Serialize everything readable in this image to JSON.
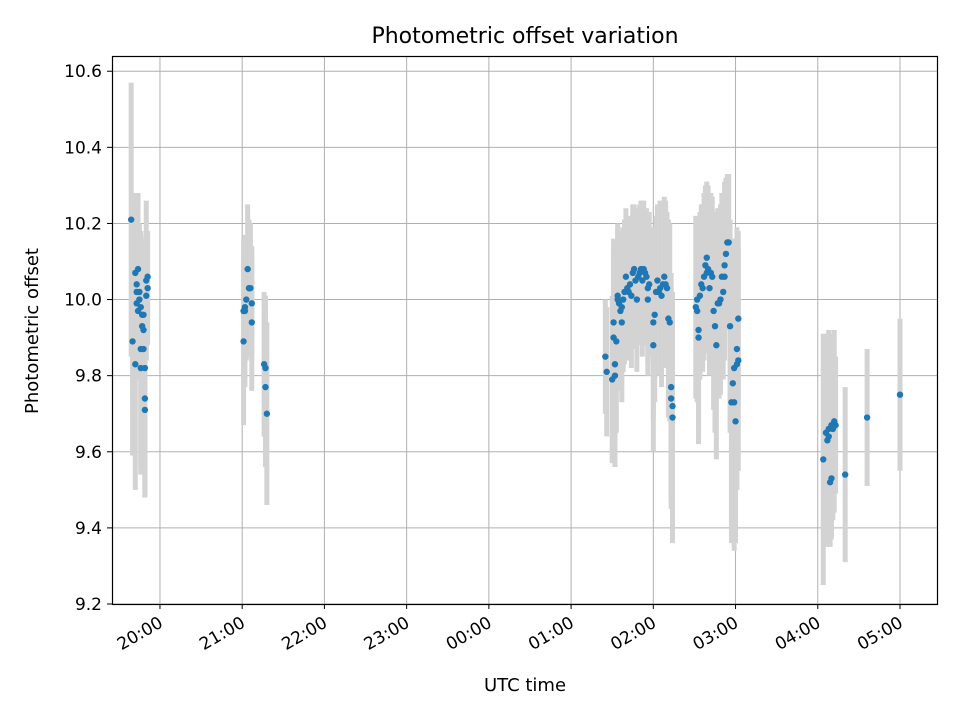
{
  "chart_data": {
    "type": "scatter",
    "title": "Photometric offset variation",
    "xlabel": "UTC time",
    "ylabel": "Photometric offset",
    "xlim": [
      "19:25",
      "05:27"
    ],
    "ylim": [
      9.2,
      10.64
    ],
    "grid": true,
    "legend": "none",
    "x_ticks": [
      "20:00",
      "21:00",
      "22:00",
      "23:00",
      "00:00",
      "01:00",
      "02:00",
      "03:00",
      "04:00",
      "05:00"
    ],
    "y_ticks": [
      "9.2",
      "9.4",
      "9.6",
      "9.8",
      "10.0",
      "10.2",
      "10.4",
      "10.6"
    ],
    "colors": {
      "points": "#1f77b4",
      "error_bars": "#d3d3d3",
      "grid": "#b0b0b0"
    },
    "series": [
      {
        "points": [
          {
            "x": "19:39",
            "y": 10.21,
            "err": 0.36
          },
          {
            "x": "19:40",
            "y": 9.89,
            "err": 0.3
          },
          {
            "x": "19:42",
            "y": 9.83,
            "err": 0.33
          },
          {
            "x": "19:42",
            "y": 10.07,
            "err": 0.21
          },
          {
            "x": "19:43",
            "y": 10.04,
            "err": 0.24
          },
          {
            "x": "19:43",
            "y": 10.02,
            "err": 0.22
          },
          {
            "x": "19:43",
            "y": 9.99,
            "err": 0.2
          },
          {
            "x": "19:44",
            "y": 10.08,
            "err": 0.2
          },
          {
            "x": "19:44",
            "y": 9.97,
            "err": 0.18
          },
          {
            "x": "19:45",
            "y": 10.0,
            "err": 0.18
          },
          {
            "x": "19:45",
            "y": 10.02,
            "err": 0.18
          },
          {
            "x": "19:46",
            "y": 9.87,
            "err": 0.31
          },
          {
            "x": "19:46",
            "y": 9.98,
            "err": 0.19
          },
          {
            "x": "19:46",
            "y": 9.82,
            "err": 0.28
          },
          {
            "x": "19:47",
            "y": 9.96,
            "err": 0.2
          },
          {
            "x": "19:47",
            "y": 9.93,
            "err": 0.22
          },
          {
            "x": "19:48",
            "y": 9.96,
            "err": 0.2
          },
          {
            "x": "19:48",
            "y": 9.92,
            "err": 0.21
          },
          {
            "x": "19:48",
            "y": 9.87,
            "err": 0.24
          },
          {
            "x": "19:49",
            "y": 9.74,
            "err": 0.26
          },
          {
            "x": "19:49",
            "y": 9.71,
            "err": 0.23
          },
          {
            "x": "19:49",
            "y": 9.82,
            "err": 0.24
          },
          {
            "x": "19:50",
            "y": 10.01,
            "err": 0.16
          },
          {
            "x": "19:50",
            "y": 10.05,
            "err": 0.21
          },
          {
            "x": "19:51",
            "y": 10.06,
            "err": 0.12
          },
          {
            "x": "19:51",
            "y": 10.03,
            "err": 0.15
          },
          {
            "x": "21:01",
            "y": 9.97,
            "err": 0.19
          },
          {
            "x": "21:01",
            "y": 9.89,
            "err": 0.22
          },
          {
            "x": "21:02",
            "y": 9.97,
            "err": 0.2
          },
          {
            "x": "21:02",
            "y": 9.98,
            "err": 0.17
          },
          {
            "x": "21:03",
            "y": 10.0,
            "err": 0.16
          },
          {
            "x": "21:04",
            "y": 10.08,
            "err": 0.17
          },
          {
            "x": "21:05",
            "y": 10.03,
            "err": 0.18
          },
          {
            "x": "21:05",
            "y": 10.03,
            "err": 0.17
          },
          {
            "x": "21:06",
            "y": 10.03,
            "err": 0.17
          },
          {
            "x": "21:07",
            "y": 9.94,
            "err": 0.18
          },
          {
            "x": "21:07",
            "y": 9.99,
            "err": 0.15
          },
          {
            "x": "21:16",
            "y": 9.83,
            "err": 0.19
          },
          {
            "x": "21:17",
            "y": 9.82,
            "err": 0.19
          },
          {
            "x": "21:17",
            "y": 9.77,
            "err": 0.21
          },
          {
            "x": "21:18",
            "y": 9.7,
            "err": 0.24
          },
          {
            "x": "01:25",
            "y": 9.85,
            "err": 0.15
          },
          {
            "x": "01:26",
            "y": 9.81,
            "err": 0.17
          },
          {
            "x": "01:30",
            "y": 9.79,
            "err": 0.22
          },
          {
            "x": "01:31",
            "y": 9.9,
            "err": 0.22
          },
          {
            "x": "01:31",
            "y": 9.94,
            "err": 0.22
          },
          {
            "x": "01:32",
            "y": 9.83,
            "err": 0.27
          },
          {
            "x": "01:32",
            "y": 9.8,
            "err": 0.24
          },
          {
            "x": "01:33",
            "y": 9.89,
            "err": 0.24
          },
          {
            "x": "01:34",
            "y": 10.01,
            "err": 0.19
          },
          {
            "x": "01:34",
            "y": 10.0,
            "err": 0.19
          },
          {
            "x": "01:35",
            "y": 9.99,
            "err": 0.17
          },
          {
            "x": "01:36",
            "y": 9.97,
            "err": 0.21
          },
          {
            "x": "01:37",
            "y": 9.98,
            "err": 0.2
          },
          {
            "x": "01:37",
            "y": 9.94,
            "err": 0.21
          },
          {
            "x": "01:38",
            "y": 10.0,
            "err": 0.19
          },
          {
            "x": "01:39",
            "y": 10.02,
            "err": 0.19
          },
          {
            "x": "01:40",
            "y": 10.06,
            "err": 0.18
          },
          {
            "x": "01:41",
            "y": 10.03,
            "err": 0.18
          },
          {
            "x": "01:42",
            "y": 10.02,
            "err": 0.18
          },
          {
            "x": "01:43",
            "y": 10.04,
            "err": 0.18
          },
          {
            "x": "01:44",
            "y": 10.01,
            "err": 0.19
          },
          {
            "x": "01:45",
            "y": 10.07,
            "err": 0.18
          },
          {
            "x": "01:46",
            "y": 10.08,
            "err": 0.17
          },
          {
            "x": "01:47",
            "y": 10.05,
            "err": 0.18
          },
          {
            "x": "01:48",
            "y": 10.0,
            "err": 0.19
          },
          {
            "x": "01:49",
            "y": 10.06,
            "err": 0.18
          },
          {
            "x": "01:50",
            "y": 10.07,
            "err": 0.18
          },
          {
            "x": "01:51",
            "y": 10.08,
            "err": 0.18
          },
          {
            "x": "01:52",
            "y": 10.05,
            "err": 0.2
          },
          {
            "x": "01:53",
            "y": 10.08,
            "err": 0.18
          },
          {
            "x": "01:54",
            "y": 10.07,
            "err": 0.17
          },
          {
            "x": "01:55",
            "y": 10.06,
            "err": 0.18
          },
          {
            "x": "01:56",
            "y": 10.0,
            "err": 0.2
          },
          {
            "x": "01:56",
            "y": 10.03,
            "err": 0.2
          },
          {
            "x": "01:57",
            "y": 10.04,
            "err": 0.19
          },
          {
            "x": "02:00",
            "y": 9.94,
            "err": 0.25
          },
          {
            "x": "02:00",
            "y": 9.88,
            "err": 0.28
          },
          {
            "x": "02:01",
            "y": 9.96,
            "err": 0.23
          },
          {
            "x": "02:02",
            "y": 10.02,
            "err": 0.2
          },
          {
            "x": "02:03",
            "y": 10.05,
            "err": 0.2
          },
          {
            "x": "02:04",
            "y": 10.02,
            "err": 0.22
          },
          {
            "x": "02:05",
            "y": 10.03,
            "err": 0.23
          },
          {
            "x": "02:06",
            "y": 10.01,
            "err": 0.24
          },
          {
            "x": "02:07",
            "y": 10.04,
            "err": 0.22
          },
          {
            "x": "02:08",
            "y": 10.06,
            "err": 0.21
          },
          {
            "x": "02:09",
            "y": 10.04,
            "err": 0.22
          },
          {
            "x": "02:10",
            "y": 10.03,
            "err": 0.2
          },
          {
            "x": "02:11",
            "y": 9.95,
            "err": 0.26
          },
          {
            "x": "02:12",
            "y": 9.94,
            "err": 0.26
          },
          {
            "x": "02:13",
            "y": 9.77,
            "err": 0.3
          },
          {
            "x": "02:13",
            "y": 9.74,
            "err": 0.29
          },
          {
            "x": "02:14",
            "y": 9.72,
            "err": 0.26
          },
          {
            "x": "02:14",
            "y": 9.69,
            "err": 0.33
          },
          {
            "x": "02:31",
            "y": 9.98,
            "err": 0.24
          },
          {
            "x": "02:32",
            "y": 10.0,
            "err": 0.22
          },
          {
            "x": "02:32",
            "y": 9.97,
            "err": 0.24
          },
          {
            "x": "02:33",
            "y": 9.9,
            "err": 0.28
          },
          {
            "x": "02:33",
            "y": 9.92,
            "err": 0.26
          },
          {
            "x": "02:34",
            "y": 10.01,
            "err": 0.22
          },
          {
            "x": "02:35",
            "y": 10.04,
            "err": 0.21
          },
          {
            "x": "02:36",
            "y": 10.03,
            "err": 0.22
          },
          {
            "x": "02:37",
            "y": 10.06,
            "err": 0.22
          },
          {
            "x": "02:38",
            "y": 10.09,
            "err": 0.21
          },
          {
            "x": "02:39",
            "y": 10.11,
            "err": 0.2
          },
          {
            "x": "02:39",
            "y": 10.07,
            "err": 0.21
          },
          {
            "x": "02:40",
            "y": 10.08,
            "err": 0.22
          },
          {
            "x": "02:41",
            "y": 10.03,
            "err": 0.23
          },
          {
            "x": "02:42",
            "y": 10.07,
            "err": 0.21
          },
          {
            "x": "02:43",
            "y": 10.06,
            "err": 0.21
          },
          {
            "x": "02:44",
            "y": 9.97,
            "err": 0.26
          },
          {
            "x": "02:45",
            "y": 9.93,
            "err": 0.28
          },
          {
            "x": "02:46",
            "y": 9.88,
            "err": 0.3
          },
          {
            "x": "02:47",
            "y": 9.99,
            "err": 0.25
          },
          {
            "x": "02:48",
            "y": 9.99,
            "err": 0.25
          },
          {
            "x": "02:49",
            "y": 10.0,
            "err": 0.25
          },
          {
            "x": "02:50",
            "y": 10.06,
            "err": 0.22
          },
          {
            "x": "02:51",
            "y": 10.02,
            "err": 0.23
          },
          {
            "x": "02:52",
            "y": 10.06,
            "err": 0.22
          },
          {
            "x": "02:52",
            "y": 10.09,
            "err": 0.22
          },
          {
            "x": "02:53",
            "y": 10.12,
            "err": 0.2
          },
          {
            "x": "02:54",
            "y": 10.15,
            "err": 0.18
          },
          {
            "x": "02:55",
            "y": 10.15,
            "err": 0.18
          },
          {
            "x": "02:56",
            "y": 9.93,
            "err": 0.28
          },
          {
            "x": "02:57",
            "y": 9.73,
            "err": 0.37
          },
          {
            "x": "02:58",
            "y": 9.78,
            "err": 0.34
          },
          {
            "x": "02:59",
            "y": 9.73,
            "err": 0.39
          },
          {
            "x": "02:59",
            "y": 9.82,
            "err": 0.34
          },
          {
            "x": "03:00",
            "y": 9.68,
            "err": 0.32
          },
          {
            "x": "03:01",
            "y": 9.87,
            "err": 0.32
          },
          {
            "x": "03:01",
            "y": 9.83,
            "err": 0.33
          },
          {
            "x": "03:02",
            "y": 9.95,
            "err": 0.23
          },
          {
            "x": "03:02",
            "y": 9.84,
            "err": 0.29
          },
          {
            "x": "04:04",
            "y": 9.58,
            "err": 0.33
          },
          {
            "x": "04:06",
            "y": 9.65,
            "err": 0.26
          },
          {
            "x": "04:07",
            "y": 9.63,
            "err": 0.28
          },
          {
            "x": "04:08",
            "y": 9.64,
            "err": 0.28
          },
          {
            "x": "04:08",
            "y": 9.66,
            "err": 0.26
          },
          {
            "x": "04:09",
            "y": 9.52,
            "err": 0.17
          },
          {
            "x": "04:10",
            "y": 9.53,
            "err": 0.16
          },
          {
            "x": "04:10",
            "y": 9.67,
            "err": 0.24
          },
          {
            "x": "04:11",
            "y": 9.66,
            "err": 0.24
          },
          {
            "x": "04:12",
            "y": 9.68,
            "err": 0.24
          },
          {
            "x": "04:13",
            "y": 9.67,
            "err": 0.18
          },
          {
            "x": "04:20",
            "y": 9.54,
            "err": 0.23
          },
          {
            "x": "04:36",
            "y": 9.69,
            "err": 0.18
          },
          {
            "x": "05:00",
            "y": 9.75,
            "err": 0.2
          }
        ]
      }
    ]
  }
}
